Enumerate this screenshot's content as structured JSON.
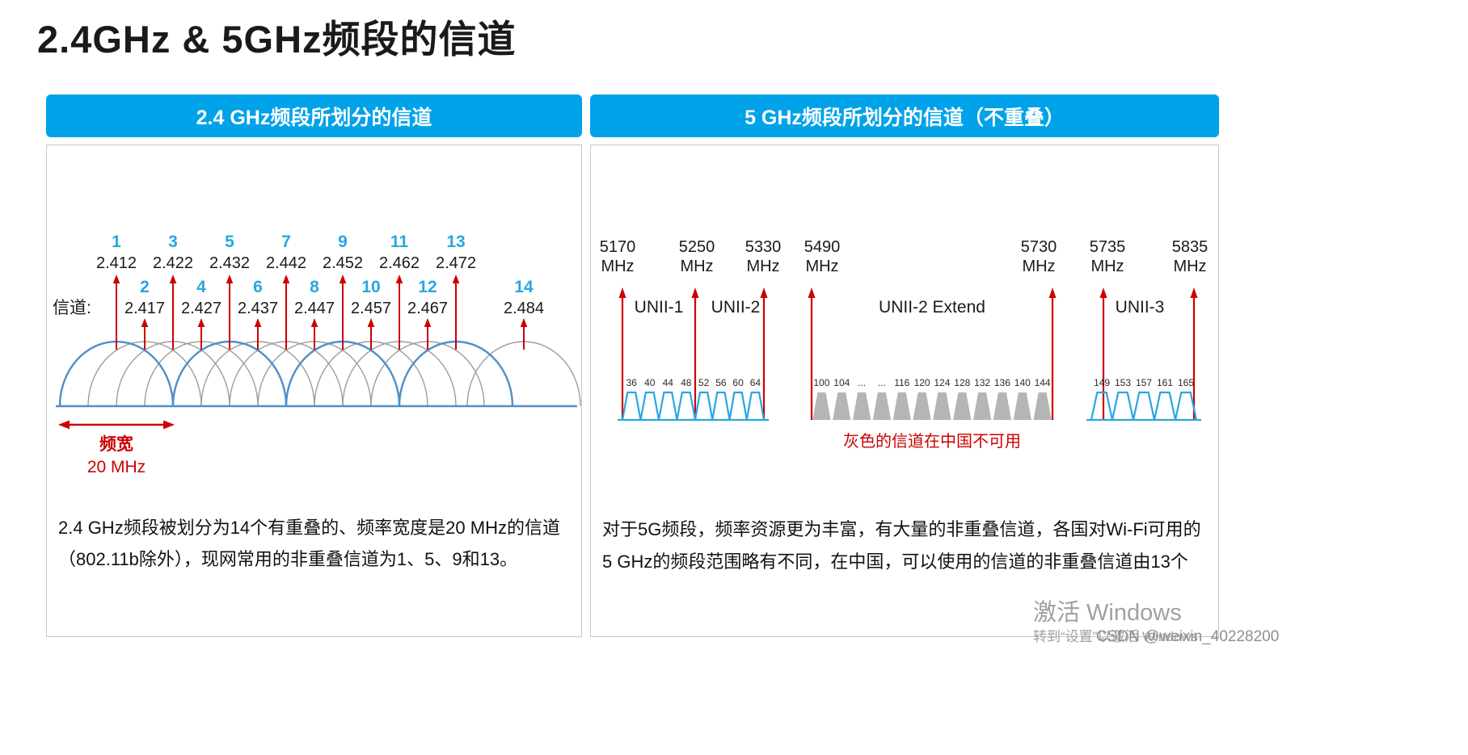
{
  "page": {
    "title": "2.4GHz & 5GHz频段的信道"
  },
  "colors": {
    "header_bg": "#00a2e9",
    "channel_num": "#29a7e0",
    "arc_blue": "#4f8fca",
    "arc_gray": "#9c9c9c",
    "red": "#cc0000",
    "wave_blue": "#29a7e0",
    "wave_gray": "#b5b5b5"
  },
  "left_panel": {
    "header": "2.4 GHz频段所划分的信道",
    "axis_label": "信道:",
    "odd_channels": [
      {
        "num": "1",
        "freq": "2.412"
      },
      {
        "num": "3",
        "freq": "2.422"
      },
      {
        "num": "5",
        "freq": "2.432"
      },
      {
        "num": "7",
        "freq": "2.442"
      },
      {
        "num": "9",
        "freq": "2.452"
      },
      {
        "num": "11",
        "freq": "2.462"
      },
      {
        "num": "13",
        "freq": "2.472"
      }
    ],
    "even_channels": [
      {
        "num": "2",
        "freq": "2.417"
      },
      {
        "num": "4",
        "freq": "2.427"
      },
      {
        "num": "6",
        "freq": "2.437"
      },
      {
        "num": "8",
        "freq": "2.447"
      },
      {
        "num": "10",
        "freq": "2.457"
      },
      {
        "num": "12",
        "freq": "2.467"
      },
      {
        "num": "14",
        "freq": "2.484"
      }
    ],
    "primary_channels": [
      1,
      5,
      9,
      13
    ],
    "bandwidth_label": "频宽",
    "bandwidth_value": "20 MHz",
    "description": "2.4 GHz频段被划分为14个有重叠的、频率宽度是20 MHz的信道（802.11b除外），现网常用的非重叠信道为1、5、9和13。"
  },
  "right_panel": {
    "header": "5 GHz频段所划分的信道（不重叠）",
    "freq_markers": [
      {
        "value": "5170",
        "unit": "MHz"
      },
      {
        "value": "5250",
        "unit": "MHz"
      },
      {
        "value": "5330",
        "unit": "MHz"
      },
      {
        "value": "5490",
        "unit": "MHz"
      },
      {
        "value": "5730",
        "unit": "MHz"
      },
      {
        "value": "5735",
        "unit": "MHz"
      },
      {
        "value": "5835",
        "unit": "MHz"
      }
    ],
    "bands": [
      {
        "name": "UNII-1",
        "available": true,
        "channels": [
          "36",
          "40",
          "44",
          "48"
        ]
      },
      {
        "name": "UNII-2",
        "available": true,
        "channels": [
          "52",
          "56",
          "60",
          "64"
        ]
      },
      {
        "name": "UNII-2 Extend",
        "available": false,
        "channels": [
          "100",
          "104",
          "...",
          "...",
          "116",
          "120",
          "124",
          "128",
          "132",
          "136",
          "140",
          "144"
        ]
      },
      {
        "name": "UNII-3",
        "available": true,
        "channels": [
          "149",
          "153",
          "157",
          "161",
          "165"
        ]
      }
    ],
    "note": "灰色的信道在中国不可用",
    "description": "对于5G频段，频率资源更为丰富，有大量的非重叠信道，各国对Wi-Fi可用的5 GHz的频段范围略有不同，在中国，可以使用的信道的非重叠信道由13个"
  },
  "watermark": {
    "activate": "激活 Windows",
    "activate_hint": "转到“设置”以激活 Windows",
    "csdn": "CSDN @weixin_40228200"
  }
}
